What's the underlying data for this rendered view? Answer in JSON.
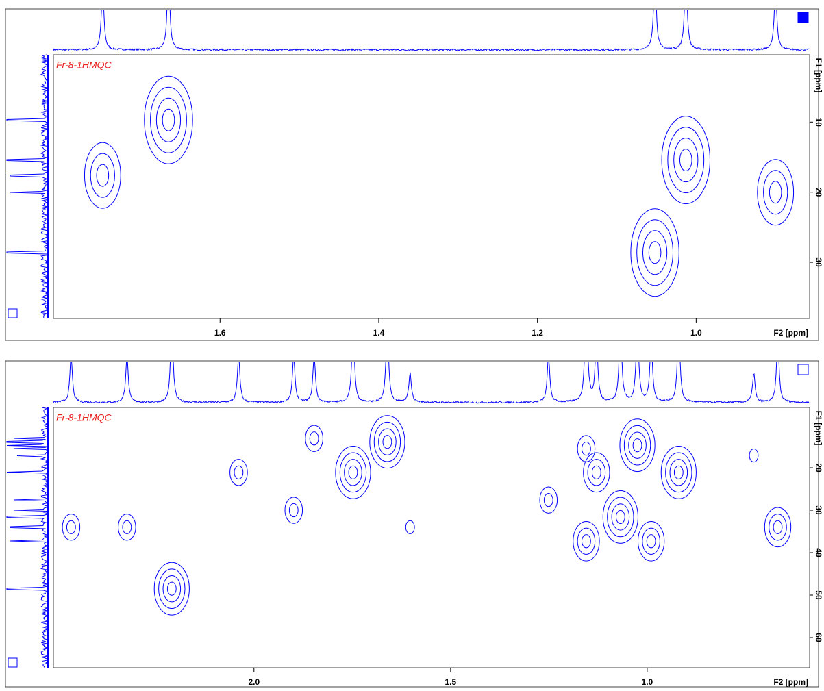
{
  "chart_data": [
    {
      "type": "hmqc",
      "title": "Fr-8-1HMQC",
      "xlabel": "F2 [ppm]",
      "ylabel": "F1 [ppm]",
      "color": "#0000ff",
      "xlim": [
        1.81,
        0.857
      ],
      "ylim": [
        0.4,
        38
      ],
      "xticks": [
        1.6,
        1.4,
        1.2,
        {
          "value": 1,
          "label": "1.0"
        }
      ],
      "yticks": [
        10,
        20,
        30
      ],
      "peaks": [
        {
          "x": 1.748,
          "y": 17.6,
          "levels": 3
        },
        {
          "x": 1.665,
          "y": 9.7,
          "levels": 4
        },
        {
          "x": 1.013,
          "y": 15.4,
          "levels": 4
        },
        {
          "x": 1.052,
          "y": 28.6,
          "levels": 4
        },
        {
          "x": 0.9,
          "y": 20.0,
          "levels": 3
        }
      ]
    },
    {
      "type": "hmqc",
      "title": "Fr-8-1HMQC",
      "xlabel": "F2 [ppm]",
      "ylabel": "F1 [ppm]",
      "color": "#0000ff",
      "xlim": [
        2.51,
        0.587
      ],
      "ylim": [
        5.8,
        67.1
      ],
      "xticks": [
        {
          "value": 2,
          "label": "2.0"
        },
        1.5,
        {
          "value": 1,
          "label": "1.0"
        }
      ],
      "yticks": [
        20,
        30,
        40,
        50,
        60
      ],
      "peaks": [
        {
          "x": 2.465,
          "y": 34.0,
          "levels": 2
        },
        {
          "x": 2.323,
          "y": 34.0,
          "levels": 2
        },
        {
          "x": 2.209,
          "y": 48.5,
          "levels": 4
        },
        {
          "x": 2.039,
          "y": 21.1,
          "levels": 2
        },
        {
          "x": 1.899,
          "y": 30.0,
          "levels": 2
        },
        {
          "x": 1.847,
          "y": 13.1,
          "levels": 2
        },
        {
          "x": 1.748,
          "y": 21.1,
          "levels": 4
        },
        {
          "x": 1.661,
          "y": 13.9,
          "levels": 4
        },
        {
          "x": 1.603,
          "y": 34.0,
          "levels": 1
        },
        {
          "x": 1.251,
          "y": 27.6,
          "levels": 2
        },
        {
          "x": 1.155,
          "y": 15.5,
          "levels": 2
        },
        {
          "x": 1.129,
          "y": 21.1,
          "levels": 3
        },
        {
          "x": 1.025,
          "y": 14.7,
          "levels": 4
        },
        {
          "x": 0.92,
          "y": 21.1,
          "levels": 4
        },
        {
          "x": 1.068,
          "y": 31.6,
          "levels": 4
        },
        {
          "x": 1.155,
          "y": 37.3,
          "levels": 3
        },
        {
          "x": 0.99,
          "y": 37.3,
          "levels": 3
        },
        {
          "x": 0.668,
          "y": 34.0,
          "levels": 3
        },
        {
          "x": 0.729,
          "y": 17.1,
          "levels": 1
        }
      ]
    }
  ]
}
